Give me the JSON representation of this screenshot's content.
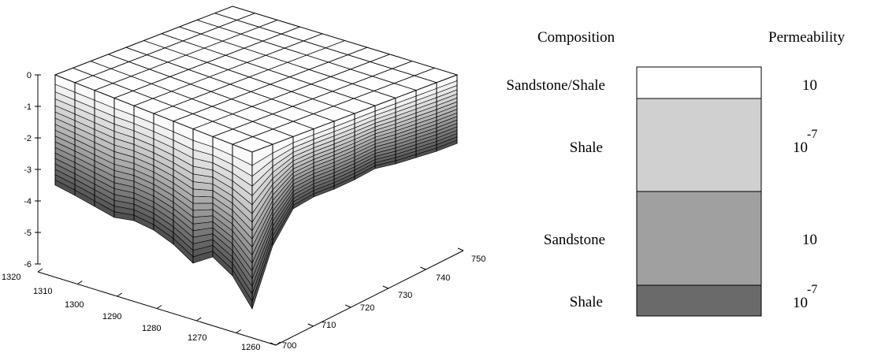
{
  "plot": {
    "z_ticks": [
      "0",
      "-1",
      "-2",
      "-3",
      "-4",
      "-5",
      "-6"
    ],
    "x_ticks": [
      "1320",
      "1310",
      "1300",
      "1290",
      "1280",
      "1270",
      "1260"
    ],
    "y_ticks": [
      "700",
      "710",
      "720",
      "730",
      "740",
      "750"
    ]
  },
  "legend": {
    "composition_header": "Composition",
    "permeability_header": "Permeability",
    "layers": [
      {
        "name": "Sandstone/Shale",
        "perm_base": "10",
        "perm_exp": "",
        "color": "#ffffff"
      },
      {
        "name": "Shale",
        "perm_base": "10",
        "perm_exp": "-7",
        "color": "#d0d0d0"
      },
      {
        "name": "Sandstone",
        "perm_base": "10",
        "perm_exp": "",
        "color": "#a0a0a0"
      },
      {
        "name": "Shale",
        "perm_base": "10",
        "perm_exp": "-7",
        "color": "#6a6a6a"
      }
    ]
  }
}
